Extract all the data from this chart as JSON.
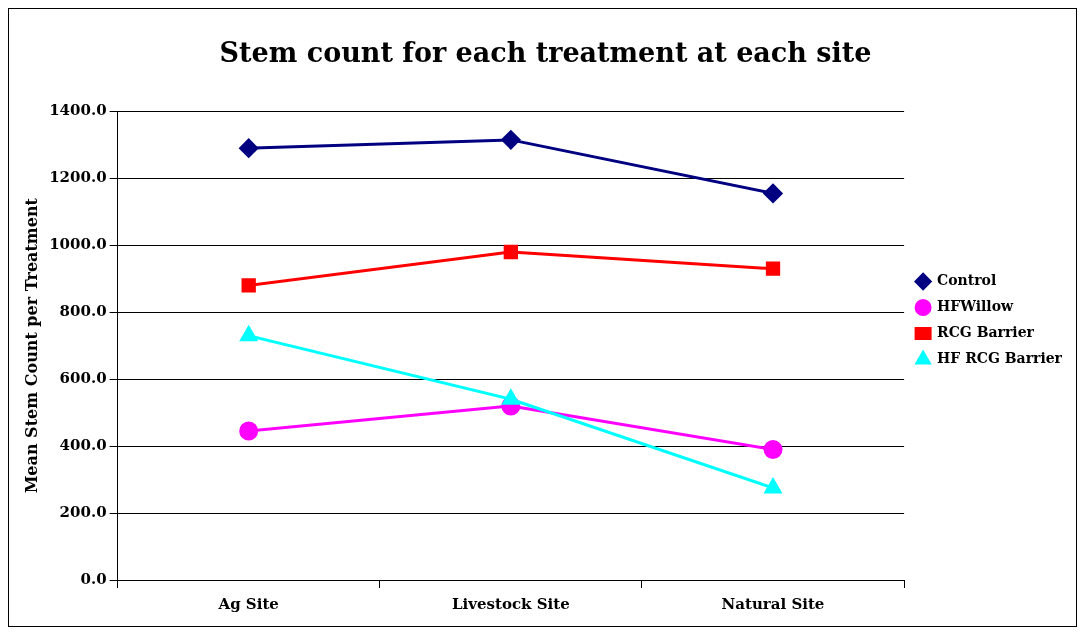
{
  "chart_data": {
    "type": "line",
    "title": "Stem count for each treatment at each site",
    "ylabel": "Mean Stem Count per Treatment",
    "categories": [
      "Ag Site",
      "Livestock Site",
      "Natural Site"
    ],
    "series": [
      {
        "name": "Control",
        "color": "#000080",
        "marker": "diamond",
        "values": [
          1290,
          1315,
          1155
        ]
      },
      {
        "name": "HFWillow",
        "color": "#ff00ff",
        "marker": "circle",
        "values": [
          445,
          520,
          390
        ]
      },
      {
        "name": "RCG Barrier",
        "color": "#ff0000",
        "marker": "square",
        "values": [
          880,
          980,
          930
        ]
      },
      {
        "name": "HF RCG Barrier",
        "color": "#00ffff",
        "marker": "triangle",
        "values": [
          730,
          540,
          275
        ]
      }
    ],
    "ylim": [
      0,
      1400
    ],
    "yticks": [
      {
        "value": 0,
        "label": "0.0"
      },
      {
        "value": 200,
        "label": "200.0"
      },
      {
        "value": 400,
        "label": "400.0"
      },
      {
        "value": 600,
        "label": "600.0"
      },
      {
        "value": 800,
        "label": "800.0"
      },
      {
        "value": 1000,
        "label": "1000.0"
      },
      {
        "value": 1200,
        "label": "1200.0"
      },
      {
        "value": 1400,
        "label": "1400.0"
      }
    ],
    "grid": "y",
    "legend": "right"
  }
}
